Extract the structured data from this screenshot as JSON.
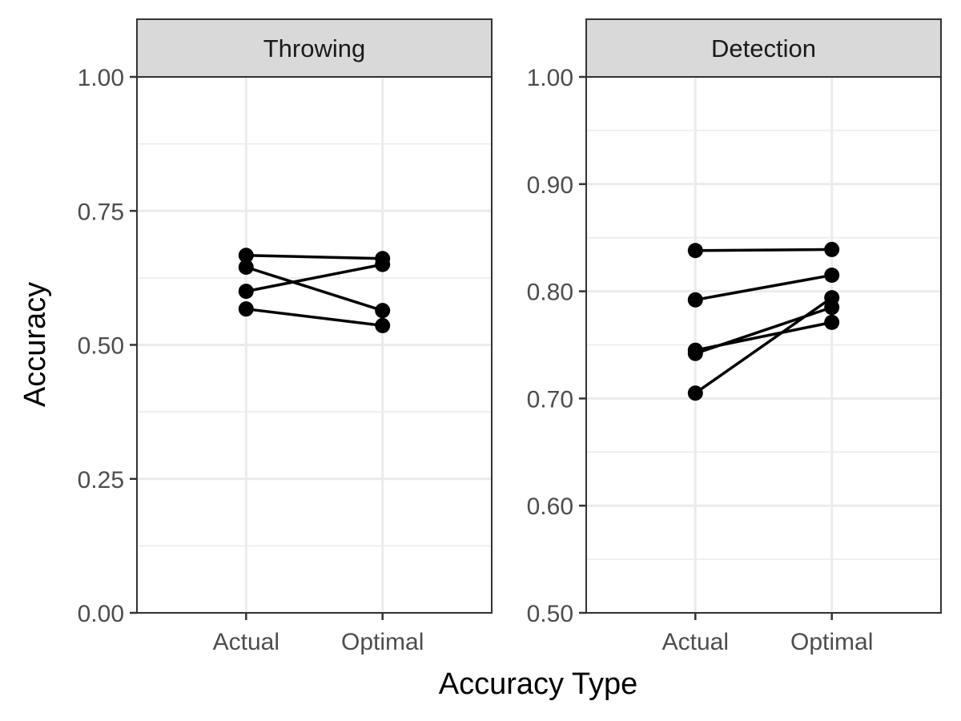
{
  "chart_data": {
    "type": "line",
    "xlabel": "Accuracy Type",
    "ylabel": "Accuracy",
    "categories": [
      "Actual",
      "Optimal"
    ],
    "grid": true,
    "legend": "none",
    "colors": {
      "series": "#000000",
      "strip": "#d9d9d9",
      "grid": "#ebebeb",
      "border": "#333333"
    },
    "panels": [
      {
        "title": "Throwing",
        "ylim": [
          0,
          1
        ],
        "yticks": [
          0,
          0.25,
          0.5,
          0.75,
          1
        ],
        "yticklabels": [
          "0.00",
          "0.25",
          "0.50",
          "0.75",
          "1.00"
        ],
        "series": [
          {
            "values": [
              0.667,
              0.661
            ]
          },
          {
            "values": [
              0.645,
              0.564
            ]
          },
          {
            "values": [
              0.6,
              0.65
            ]
          },
          {
            "values": [
              0.567,
              0.536
            ]
          }
        ]
      },
      {
        "title": "Detection",
        "ylim": [
          0.5,
          1
        ],
        "yticks": [
          0.5,
          0.6,
          0.7,
          0.8,
          0.9,
          1
        ],
        "yticklabels": [
          "0.50",
          "0.60",
          "0.70",
          "0.80",
          "0.90",
          "1.00"
        ],
        "series": [
          {
            "values": [
              0.838,
              0.839
            ]
          },
          {
            "values": [
              0.792,
              0.815
            ]
          },
          {
            "values": [
              0.745,
              0.771
            ]
          },
          {
            "values": [
              0.742,
              0.785
            ]
          },
          {
            "values": [
              0.705,
              0.794
            ]
          }
        ]
      }
    ]
  }
}
